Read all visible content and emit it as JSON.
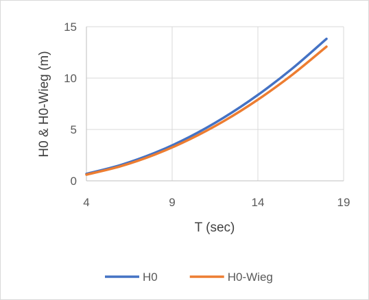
{
  "chart_data": {
    "type": "line",
    "title": "",
    "xlabel": "T (sec)",
    "ylabel": "H0 & H0-Wieg (m)",
    "xlim": [
      4,
      19
    ],
    "ylim": [
      0,
      15
    ],
    "xticks": [
      4,
      9,
      14,
      19
    ],
    "yticks": [
      0,
      5,
      10,
      15
    ],
    "grid": true,
    "legend_position": "bottom",
    "x": [
      4,
      6,
      8,
      10,
      12,
      14,
      16,
      18
    ],
    "series": [
      {
        "name": "H0",
        "color": "#4472C4",
        "values": [
          0.68,
          1.54,
          2.73,
          4.26,
          6.14,
          8.36,
          10.92,
          13.82
        ]
      },
      {
        "name": "H0-Wieg",
        "color": "#ED7D31",
        "values": [
          0.6,
          1.42,
          2.56,
          4.02,
          5.8,
          7.9,
          10.32,
          13.06
        ]
      }
    ]
  }
}
